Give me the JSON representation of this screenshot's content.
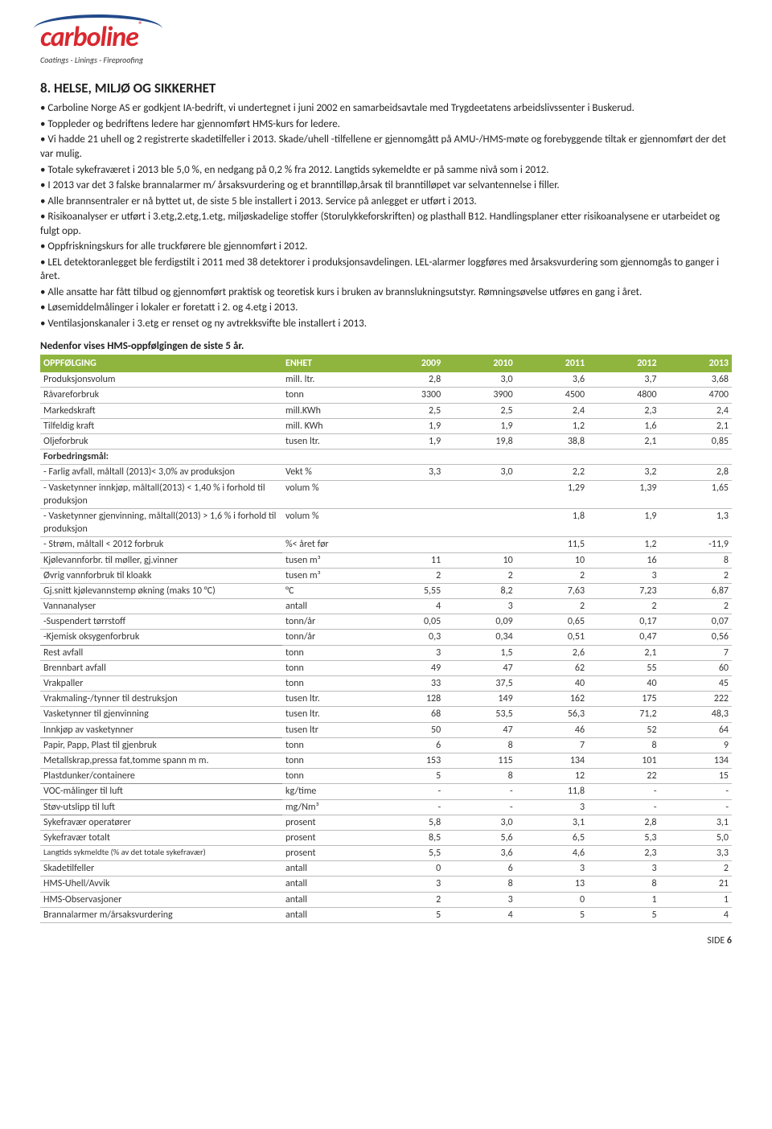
{
  "logo": {
    "brand": "carboline",
    "tagline": "Coatings - Linings - Fireproofing"
  },
  "heading": "8. HELSE, MILJØ OG SIKKERHET",
  "bullets": [
    "• Carboline Norge AS er godkjent IA-bedrift, vi undertegnet i juni 2002 en samarbeidsavtale med Trygdeetatens arbeidslivssenter i Buskerud.",
    "• Toppleder og bedriftens ledere har gjennomført HMS-kurs for ledere.",
    "• Vi hadde 21 uhell og 2 registrerte skadetilfeller i 2013. Skade/uhell -tilfellene er gjennomgått på AMU-/HMS-møte og forebyggende tiltak er gjennomført der det var mulig.",
    "• Totale sykefraværet i 2013 ble 5,0 %, en nedgang på 0,2 % fra 2012. Langtids sykemeldte er på samme nivå som i 2012.",
    "• I 2013 var det 3 falske brannalarmer m/ årsaksvurdering og et branntilløp,årsak til branntilløpet var selvantennelse i filler.",
    "• Alle brannsentraler er nå byttet ut, de siste 5 ble installert i 2013. Service på anlegget er utført i 2013.",
    "• Risikoanalyser er utført i 3.etg,2.etg,1.etg, miljøskadelige stoffer (Storulykkeforskriften) og plasthall B12. Handlingsplaner etter risikoanalysene er utarbeidet og fulgt opp.",
    "• Oppfriskningskurs for alle truckførere ble gjennomført i 2012.",
    "• LEL detektoranlegget ble ferdigstilt i 2011 med 38 detektorer i produksjonsavdelingen. LEL-alarmer loggføres med årsaksvurdering som gjennomgås to ganger i året.",
    "• Alle ansatte har fått tilbud og gjennomført praktisk og teoretisk kurs i bruken av brannslukningsutstyr. Rømningsøvelse utføres en gang i året.",
    "• Løsemiddelmålinger i lokaler er foretatt i 2. og 4.etg i 2013.",
    "• Ventilasjonskanaler i 3.etg er renset og ny avtrekksvifte ble installert i 2013."
  ],
  "table_caption": "Nedenfor vises HMS-oppfølgingen de siste 5 år.",
  "table": {
    "header_bg": "#8fb53f",
    "header_fg": "#ffffff",
    "col_widths_pct": [
      35,
      13,
      10.4,
      10.4,
      10.4,
      10.4,
      10.4
    ],
    "columns": [
      "OPPFØLGING",
      "ENHET",
      "2009",
      "2010",
      "2011",
      "2012",
      "2013"
    ],
    "rows": [
      {
        "c": [
          "Produksjonsvolum",
          "mill. ltr.",
          "2,8",
          "3,0",
          "3,6",
          "3,7",
          "3,68"
        ]
      },
      {
        "c": [
          "Råvareforbruk",
          "tonn",
          "3300",
          "3900",
          "4500",
          "4800",
          "4700"
        ]
      },
      {
        "c": [
          "Markedskraft",
          "mill.KWh",
          "2,5",
          "2,5",
          "2,4",
          "2,3",
          "2,4"
        ]
      },
      {
        "c": [
          "Tilfeldig kraft",
          "mill. KWh",
          "1,9",
          "1,9",
          "1,2",
          "1,6",
          "2,1"
        ]
      },
      {
        "c": [
          "Oljeforbruk",
          "tusen ltr.",
          "1,9",
          "19,8",
          "38,8",
          "2,1",
          "0,85"
        ]
      },
      {
        "c": [
          "Forbedringsmål:",
          "",
          "",
          "",
          "",
          "",
          ""
        ],
        "bold": true
      },
      {
        "c": [
          "- Farlig avfall, måltall (2013)< 3,0% av produksjon",
          "Vekt %",
          "3,3",
          "3,0",
          "2,2",
          "3,2",
          "2,8"
        ]
      },
      {
        "c": [
          "- Vasketynner innkjøp, måltall(2013)  < 1,40 % i forhold til produksjon",
          "volum %",
          "",
          "",
          "1,29",
          "1,39",
          "1,65"
        ]
      },
      {
        "c": [
          "- Vasketynner gjenvinning, måltall(2013) > 1,6 % i forhold til produksjon",
          "volum %",
          "",
          "",
          "1,8",
          "1,9",
          "1,3"
        ]
      },
      {
        "c": [
          "- Strøm, måltall < 2012 forbruk",
          "%< året før",
          "",
          "",
          "11,5",
          "1,2",
          "-11,9"
        ]
      },
      {
        "c": [
          "Kjølevannforbr. til møller, gj.vinner",
          "tusen m³",
          "11",
          "10",
          "10",
          "16",
          "8"
        ],
        "section": true
      },
      {
        "c": [
          "Øvrig vannforbruk til kloakk",
          "tusen m³",
          "2",
          "2",
          "2",
          "3",
          "2"
        ]
      },
      {
        "c": [
          "Gj.snitt kjølevannstemp økning (maks 10 °C)",
          "°C",
          "5,55",
          "8,2",
          "7,63",
          "7,23",
          "6,87"
        ]
      },
      {
        "c": [
          "Vannanalyser",
          "antall",
          "4",
          "3",
          "2",
          "2",
          "2"
        ]
      },
      {
        "c": [
          "-Suspendert tørrstoff",
          "tonn/år",
          "0,05",
          "0,09",
          "0,65",
          "0,17",
          "0,07"
        ]
      },
      {
        "c": [
          "-Kjemisk oksygenforbruk",
          "tonn/år",
          "0,3",
          "0,34",
          "0,51",
          "0,47",
          "0,56"
        ]
      },
      {
        "c": [
          "Rest avfall",
          "tonn",
          "3",
          "1,5",
          "2,6",
          "2,1",
          "7"
        ],
        "section": true
      },
      {
        "c": [
          "Brennbart avfall",
          "tonn",
          "49",
          "47",
          "62",
          "55",
          "60"
        ]
      },
      {
        "c": [
          "Vrakpaller",
          "tonn",
          "33",
          "37,5",
          "40",
          "40",
          "45"
        ]
      },
      {
        "c": [
          "Vrakmaling-/tynner til destruksjon",
          "tusen ltr.",
          "128",
          "149",
          "162",
          "175",
          "222"
        ]
      },
      {
        "c": [
          "Vasketynner til gjenvinning",
          "tusen ltr.",
          "68",
          "53,5",
          "56,3",
          "71,2",
          "48,3"
        ]
      },
      {
        "c": [
          "Innkjøp av vasketynner",
          "tusen ltr",
          "50",
          "47",
          "46",
          "52",
          "64"
        ]
      },
      {
        "c": [
          "Papir, Papp, Plast til gjenbruk",
          "tonn",
          "6",
          "8",
          "7",
          "8",
          "9"
        ],
        "section": true
      },
      {
        "c": [
          "Metallskrap,pressa fat,tomme spann m m.",
          "tonn",
          "153",
          "115",
          "134",
          "101",
          "134"
        ]
      },
      {
        "c": [
          "Plastdunker/containere",
          "tonn",
          "5",
          "8",
          "12",
          "22",
          "15"
        ]
      },
      {
        "c": [
          "VOC-målinger til luft",
          "kg/time",
          "-",
          "-",
          "11,8",
          "-",
          "-"
        ],
        "section": true
      },
      {
        "c": [
          "Støv-utslipp til luft",
          "mg/Nm³",
          "-",
          "-",
          "3",
          "-",
          "-"
        ],
        "section": true
      },
      {
        "c": [
          "Sykefravær operatører",
          "prosent",
          "5,8",
          "3,0",
          "3,1",
          "2,8",
          "3,1"
        ],
        "section": true
      },
      {
        "c": [
          "Sykefravær totalt",
          "prosent",
          "8,5",
          "5,6",
          "6,5",
          "5,3",
          "5,0"
        ]
      },
      {
        "c": [
          "Langtids sykmeldte (% av det totale sykefravær)",
          "prosent",
          "5,5",
          "3,6",
          "4,6",
          "2,3",
          "3,3"
        ],
        "small": true
      },
      {
        "c": [
          "Skadetilfeller",
          "antall",
          "0",
          "6",
          "3",
          "3",
          "2"
        ]
      },
      {
        "c": [
          "HMS-Uhell/Avvik",
          "antall",
          "3",
          "8",
          "13",
          "8",
          "21"
        ]
      },
      {
        "c": [
          "HMS-Observasjoner",
          "antall",
          "2",
          "3",
          "0",
          "1",
          "1"
        ]
      },
      {
        "c": [
          "Brannalarmer m/årsaksvurdering",
          "antall",
          "5",
          "4",
          "5",
          "5",
          "4"
        ]
      }
    ]
  },
  "footer": {
    "label": "SIDE",
    "page": "6"
  }
}
